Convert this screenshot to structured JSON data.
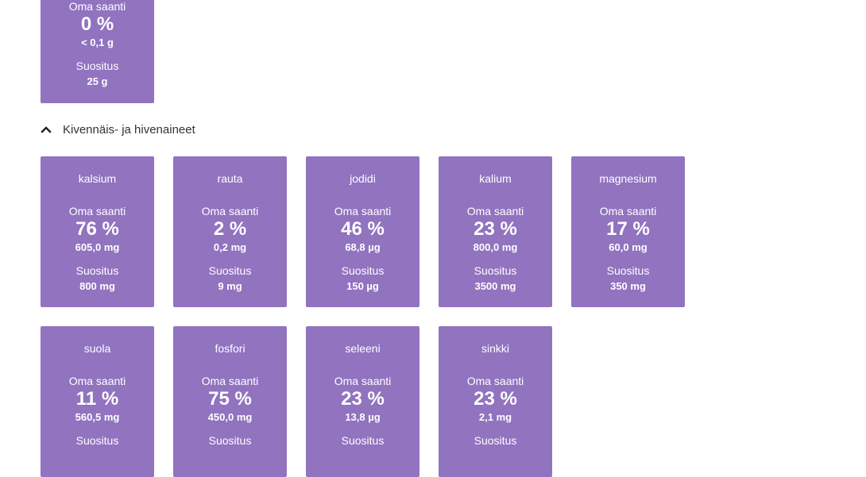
{
  "top_card": {
    "intake_label": "Oma saanti",
    "percent": "0 %",
    "amount": "< 0,1 g",
    "recommendation_label": "Suositus",
    "recommendation": "25 g"
  },
  "section": {
    "title": "Kivennäis- ja hivenaineet",
    "icon": "chevron-up-icon"
  },
  "nutrients": [
    {
      "name": "kalsium",
      "intake_label": "Oma saanti",
      "percent": "76 %",
      "amount": "605,0 mg",
      "recommendation_label": "Suositus",
      "recommendation": "800 mg"
    },
    {
      "name": "rauta",
      "intake_label": "Oma saanti",
      "percent": "2 %",
      "amount": "0,2 mg",
      "recommendation_label": "Suositus",
      "recommendation": "9 mg"
    },
    {
      "name": "jodidi",
      "intake_label": "Oma saanti",
      "percent": "46 %",
      "amount": "68,8 µg",
      "recommendation_label": "Suositus",
      "recommendation": "150 µg"
    },
    {
      "name": "kalium",
      "intake_label": "Oma saanti",
      "percent": "23 %",
      "amount": "800,0 mg",
      "recommendation_label": "Suositus",
      "recommendation": "3500 mg"
    },
    {
      "name": "magnesium",
      "intake_label": "Oma saanti",
      "percent": "17 %",
      "amount": "60,0 mg",
      "recommendation_label": "Suositus",
      "recommendation": "350 mg"
    },
    {
      "name": "suola",
      "intake_label": "Oma saanti",
      "percent": "11 %",
      "amount": "560,5 mg",
      "recommendation_label": "Suositus",
      "recommendation": ""
    },
    {
      "name": "fosfori",
      "intake_label": "Oma saanti",
      "percent": "75 %",
      "amount": "450,0 mg",
      "recommendation_label": "Suositus",
      "recommendation": ""
    },
    {
      "name": "seleeni",
      "intake_label": "Oma saanti",
      "percent": "23 %",
      "amount": "13,8 µg",
      "recommendation_label": "Suositus",
      "recommendation": ""
    },
    {
      "name": "sinkki",
      "intake_label": "Oma saanti",
      "percent": "23 %",
      "amount": "2,1 mg",
      "recommendation_label": "Suositus",
      "recommendation": ""
    }
  ],
  "colors": {
    "card_background": "#9173bf",
    "card_text": "#ffffff",
    "header_text": "#333333"
  }
}
